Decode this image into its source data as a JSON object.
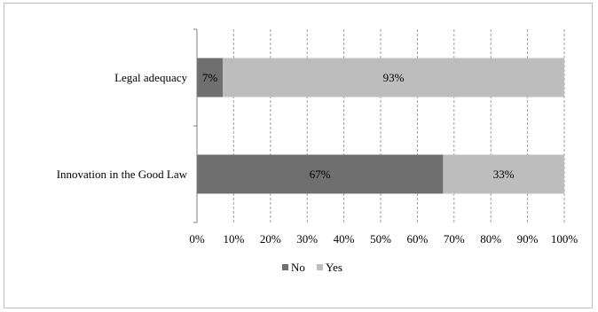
{
  "chart_data": {
    "type": "bar",
    "orientation": "horizontal",
    "stacked": "percent",
    "categories": [
      "Legal adequacy",
      "Innovation in the Good Law"
    ],
    "series": [
      {
        "name": "No",
        "values": [
          7,
          67
        ],
        "labels": [
          "7%",
          "67%"
        ],
        "color": "#6f6f6f"
      },
      {
        "name": "Yes",
        "values": [
          93,
          33
        ],
        "labels": [
          "93%",
          "33%"
        ],
        "color": "#bdbdbd"
      }
    ],
    "xlim": [
      0,
      100
    ],
    "xticks": [
      "0%",
      "10%",
      "20%",
      "30%",
      "40%",
      "50%",
      "60%",
      "70%",
      "80%",
      "90%",
      "100%"
    ],
    "grid": "vertical-dashed",
    "legend_position": "bottom"
  }
}
